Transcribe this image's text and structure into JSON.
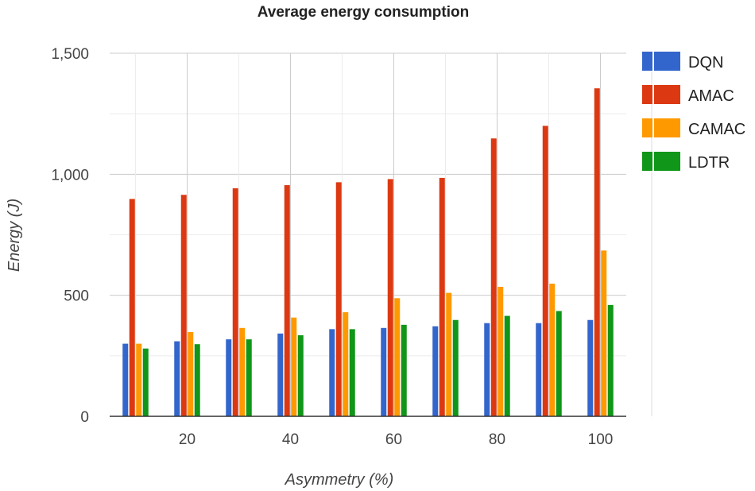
{
  "chart_data": {
    "type": "bar",
    "title": "Average energy consumption",
    "xlabel": "Asymmetry (%)",
    "ylabel": "Energy (J)",
    "x": [
      10,
      20,
      30,
      40,
      50,
      60,
      70,
      80,
      90,
      100
    ],
    "x_ticks": [
      20,
      40,
      60,
      80,
      100
    ],
    "x_tick_labels": [
      "20",
      "40",
      "60",
      "80",
      "100"
    ],
    "xlim": [
      5,
      105
    ],
    "ylim": [
      0,
      1500
    ],
    "y_ticks": [
      0,
      500,
      1000,
      1500
    ],
    "y_tick_labels": [
      "0",
      "500",
      "1,000",
      "1,500"
    ],
    "grid": true,
    "legend_position": "right",
    "series": [
      {
        "name": "DQN",
        "color": "#3366cc",
        "values": [
          300,
          310,
          318,
          342,
          360,
          365,
          372,
          385,
          385,
          398
        ]
      },
      {
        "name": "AMAC",
        "color": "#dc3912",
        "values": [
          898,
          915,
          942,
          955,
          967,
          980,
          985,
          1148,
          1200,
          1355
        ]
      },
      {
        "name": "CAMAC",
        "color": "#ff9900",
        "values": [
          300,
          348,
          365,
          408,
          430,
          488,
          510,
          535,
          548,
          685
        ]
      },
      {
        "name": "LDTR",
        "color": "#109618",
        "values": [
          280,
          298,
          318,
          335,
          360,
          378,
          398,
          415,
          435,
          460
        ]
      }
    ]
  }
}
